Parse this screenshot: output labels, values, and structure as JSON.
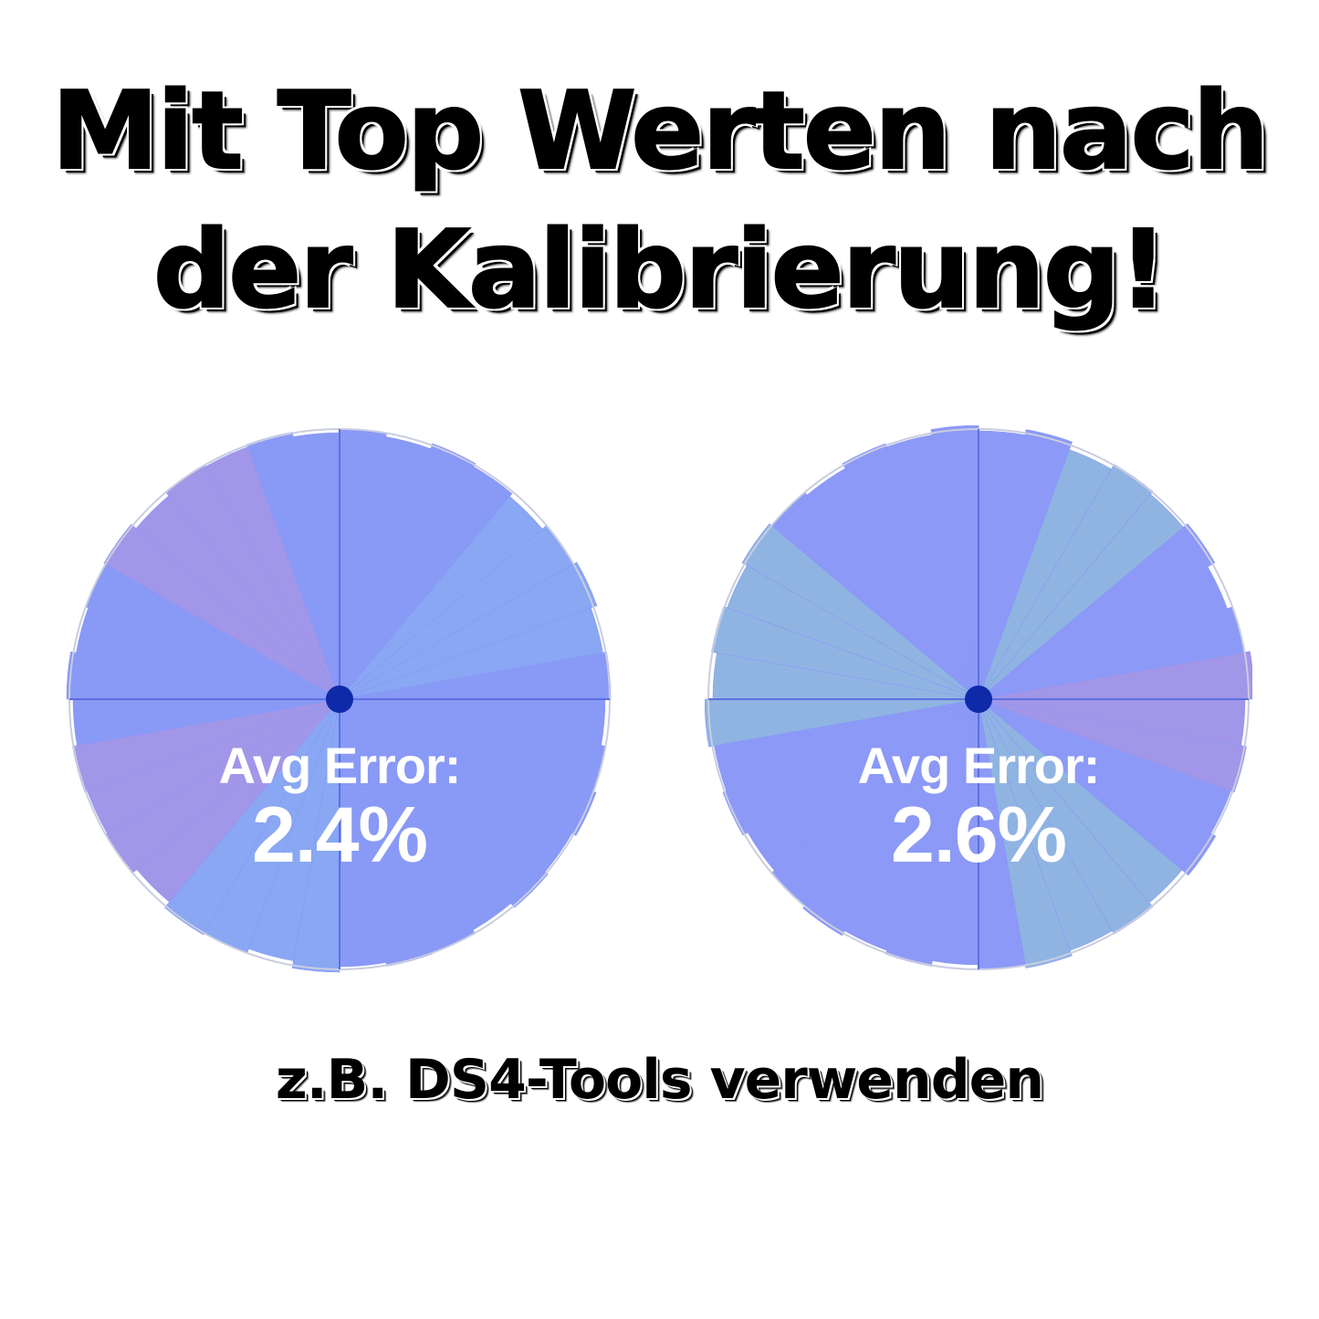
{
  "headline": {
    "line1": "Mit Top Werten nach",
    "line2": "der Kalibrierung!"
  },
  "caption": "z.B. DS4-Tools verwenden",
  "gauges": [
    {
      "title": "Avg Error:",
      "value": "2.4%",
      "colors": {
        "base": "#7f90f5",
        "high": "#9a8de6",
        "low": "#7fa0f2",
        "center": "#0f2aa8"
      }
    },
    {
      "title": "Avg Error:",
      "value": "2.6%",
      "colors": {
        "base": "#8290f5",
        "high": "#9a8de6",
        "low": "#85aee0",
        "center": "#0f2aa8"
      }
    }
  ]
}
